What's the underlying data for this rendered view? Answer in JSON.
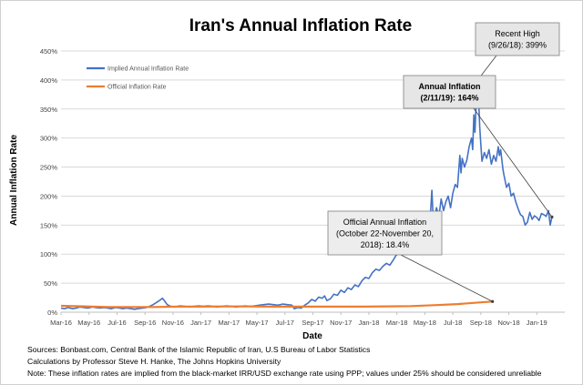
{
  "chart_data": {
    "type": "line",
    "title": "Iran's Annual Inflation Rate",
    "xlabel": "Date",
    "ylabel": "Annual Inflation Rate",
    "ylim": [
      0,
      450
    ],
    "y_ticks": [
      "0%",
      "50%",
      "100%",
      "150%",
      "200%",
      "250%",
      "300%",
      "350%",
      "400%",
      "450%"
    ],
    "x_ticks": [
      "Mar-16",
      "May-16",
      "Jul-16",
      "Sep-16",
      "Nov-16",
      "Jan-17",
      "Mar-17",
      "May-17",
      "Jul-17",
      "Sep-17",
      "Nov-17",
      "Jan-18",
      "Mar-18",
      "May-18",
      "Jul-18",
      "Sep-18",
      "Nov-18",
      "Jan-19"
    ],
    "grid": true,
    "legend_position": "top-left",
    "series": [
      {
        "name": "Implied Annual Inflation Rate",
        "color": "#4472C4",
        "points": [
          [
            0.0,
            7
          ],
          [
            0.3,
            6
          ],
          [
            0.6,
            8
          ],
          [
            1.0,
            6
          ],
          [
            1.3,
            7
          ],
          [
            1.6,
            9
          ],
          [
            2.0,
            8
          ],
          [
            2.3,
            7
          ],
          [
            2.7,
            9
          ],
          [
            3.0,
            8
          ],
          [
            3.3,
            7
          ],
          [
            3.7,
            8
          ],
          [
            4.0,
            7
          ],
          [
            4.3,
            6
          ],
          [
            4.7,
            8
          ],
          [
            5.0,
            7
          ],
          [
            5.3,
            6
          ],
          [
            5.6,
            7
          ],
          [
            6.0,
            6
          ],
          [
            6.3,
            5
          ],
          [
            6.6,
            6
          ],
          [
            7.0,
            7
          ],
          [
            7.3,
            8
          ],
          [
            7.6,
            10
          ],
          [
            7.9,
            13
          ],
          [
            8.2,
            17
          ],
          [
            8.5,
            21
          ],
          [
            8.7,
            24
          ],
          [
            8.9,
            19
          ],
          [
            9.1,
            13
          ],
          [
            9.4,
            10
          ],
          [
            9.8,
            9
          ],
          [
            10.2,
            11
          ],
          [
            10.6,
            10
          ],
          [
            11.0,
            9
          ],
          [
            11.4,
            10
          ],
          [
            11.8,
            11
          ],
          [
            12.2,
            10
          ],
          [
            12.6,
            11
          ],
          [
            13.0,
            10
          ],
          [
            13.4,
            9
          ],
          [
            13.8,
            10
          ],
          [
            14.2,
            11
          ],
          [
            14.6,
            10
          ],
          [
            15.0,
            9
          ],
          [
            15.4,
            10
          ],
          [
            15.8,
            11
          ],
          [
            16.2,
            10
          ],
          [
            16.6,
            11
          ],
          [
            17.0,
            12
          ],
          [
            17.4,
            13
          ],
          [
            17.8,
            14
          ],
          [
            18.2,
            13
          ],
          [
            18.6,
            12
          ],
          [
            19.0,
            14
          ],
          [
            19.4,
            13
          ],
          [
            19.8,
            12
          ],
          [
            20.0,
            6
          ],
          [
            20.3,
            8
          ],
          [
            20.6,
            7
          ],
          [
            20.9,
            12
          ],
          [
            21.2,
            16
          ],
          [
            21.5,
            22
          ],
          [
            21.8,
            19
          ],
          [
            22.1,
            26
          ],
          [
            22.4,
            24
          ],
          [
            22.6,
            28
          ],
          [
            22.8,
            20
          ],
          [
            23.1,
            23
          ],
          [
            23.4,
            31
          ],
          [
            23.7,
            29
          ],
          [
            24.0,
            38
          ],
          [
            24.3,
            34
          ],
          [
            24.6,
            42
          ],
          [
            24.9,
            39
          ],
          [
            25.2,
            47
          ],
          [
            25.5,
            44
          ],
          [
            25.8,
            54
          ],
          [
            26.1,
            60
          ],
          [
            26.4,
            58
          ],
          [
            26.7,
            68
          ],
          [
            27.0,
            74
          ],
          [
            27.3,
            72
          ],
          [
            27.6,
            79
          ],
          [
            27.9,
            84
          ],
          [
            28.2,
            81
          ],
          [
            28.5,
            90
          ],
          [
            28.7,
            97
          ],
          [
            28.9,
            101
          ],
          [
            29.1,
            105
          ],
          [
            29.3,
            104
          ],
          [
            29.5,
            110
          ],
          [
            29.7,
            118
          ],
          [
            29.9,
            134
          ],
          [
            30.0,
            158
          ],
          [
            30.1,
            145
          ],
          [
            30.3,
            130
          ],
          [
            30.5,
            127
          ],
          [
            30.7,
            132
          ],
          [
            30.9,
            128
          ],
          [
            31.1,
            137
          ],
          [
            31.3,
            148
          ],
          [
            31.5,
            142
          ],
          [
            31.7,
            175
          ],
          [
            31.8,
            210
          ],
          [
            31.9,
            170
          ],
          [
            32.0,
            160
          ],
          [
            32.2,
            180
          ],
          [
            32.4,
            165
          ],
          [
            32.6,
            195
          ],
          [
            32.8,
            175
          ],
          [
            33.0,
            190
          ],
          [
            33.2,
            200
          ],
          [
            33.4,
            180
          ],
          [
            33.6,
            205
          ],
          [
            33.8,
            220
          ],
          [
            34.0,
            215
          ],
          [
            34.2,
            270
          ],
          [
            34.3,
            240
          ],
          [
            34.4,
            265
          ],
          [
            34.6,
            250
          ],
          [
            34.8,
            262
          ],
          [
            35.0,
            285
          ],
          [
            35.2,
            300
          ],
          [
            35.3,
            280
          ],
          [
            35.4,
            340
          ],
          [
            35.5,
            310
          ],
          [
            35.6,
            360
          ],
          [
            35.7,
            399
          ],
          [
            35.8,
            370
          ],
          [
            35.9,
            320
          ],
          [
            36.0,
            290
          ],
          [
            36.1,
            260
          ],
          [
            36.3,
            275
          ],
          [
            36.5,
            265
          ],
          [
            36.7,
            280
          ],
          [
            36.9,
            255
          ],
          [
            37.1,
            270
          ],
          [
            37.3,
            260
          ],
          [
            37.5,
            285
          ],
          [
            37.6,
            270
          ],
          [
            37.7,
            280
          ],
          [
            37.9,
            245
          ],
          [
            38.0,
            235
          ],
          [
            38.2,
            215
          ],
          [
            38.4,
            222
          ],
          [
            38.6,
            200
          ],
          [
            38.8,
            205
          ],
          [
            39.0,
            190
          ],
          [
            39.2,
            178
          ],
          [
            39.4,
            168
          ],
          [
            39.6,
            165
          ],
          [
            39.8,
            150
          ],
          [
            40.0,
            155
          ],
          [
            40.2,
            172
          ],
          [
            40.4,
            160
          ],
          [
            40.6,
            166
          ],
          [
            40.8,
            163
          ],
          [
            41.0,
            158
          ],
          [
            41.2,
            170
          ],
          [
            41.4,
            168
          ],
          [
            41.6,
            165
          ],
          [
            41.8,
            175
          ],
          [
            41.95,
            150
          ],
          [
            42.1,
            164
          ]
        ]
      },
      {
        "name": "Official Inflation Rate",
        "color": "#ED7D31",
        "points": [
          [
            0.0,
            11
          ],
          [
            2.0,
            10
          ],
          [
            4.0,
            9
          ],
          [
            6.0,
            9
          ],
          [
            8.0,
            9
          ],
          [
            10.0,
            9.5
          ],
          [
            12.0,
            9.6
          ],
          [
            14.0,
            9.8
          ],
          [
            16.0,
            10
          ],
          [
            18.0,
            9.6
          ],
          [
            20.0,
            9.5
          ],
          [
            22.0,
            9.6
          ],
          [
            24.0,
            9.5
          ],
          [
            26.0,
            9.6
          ],
          [
            28.0,
            10
          ],
          [
            30.0,
            10.5
          ],
          [
            32.0,
            12
          ],
          [
            34.0,
            14
          ],
          [
            36.0,
            17
          ],
          [
            37.0,
            18.4
          ]
        ]
      }
    ],
    "annotations": [
      {
        "text_lines": [
          "Recent High",
          "(9/26/18): 399%"
        ],
        "target": [
          35.7,
          399
        ]
      },
      {
        "text_lines": [
          "Annual Inflation",
          "(2/11/19): 164%"
        ],
        "target": [
          42.1,
          164
        ]
      },
      {
        "text_lines": [
          "Official Annual Inflation",
          "(October 22-November 20,",
          "2018): 18.4%"
        ],
        "target": [
          37.0,
          18.4
        ]
      }
    ]
  },
  "sources": [
    "Sources: Bonbast.com, Central Bank of the Islamic Republic of Iran, U.S Bureau of Labor Statistics",
    "Calculations by Professor Steve H. Hanke, The Johns Hopkins University",
    "Note: These inflation rates are implied from the black-market IRR/USD exchange rate using PPP; values under 25% should be considered unreliable"
  ]
}
